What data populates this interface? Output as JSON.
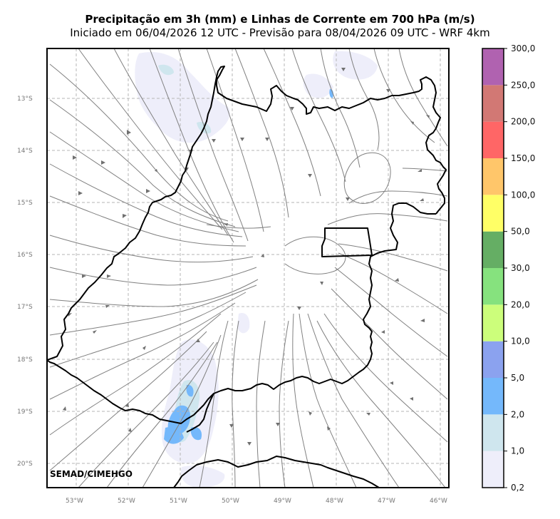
{
  "header": {
    "title": "Precipitação em 3h (mm) e Linhas de Corrente em 700 hPa (m/s)",
    "subtitle": "Iniciado em 06/04/2026 12 UTC - Previsão para 08/04/2026 09 UTC - WRF 4km"
  },
  "map": {
    "credit": "SEMAD/CIMEHGO",
    "lon_labels": [
      "53°W",
      "52°W",
      "51°W",
      "50°W",
      "49°W",
      "48°W",
      "47°W",
      "46°W"
    ],
    "lat_labels": [
      "13°S",
      "14°S",
      "15°S",
      "16°S",
      "17°S",
      "18°S",
      "19°S",
      "20°S"
    ],
    "grid": "dashed",
    "lon_range": [
      -53.55,
      -45.85
    ],
    "lat_range": [
      -12.0,
      -20.45
    ]
  },
  "colorbar": {
    "labels": [
      "0,2",
      "1,0",
      "2,0",
      "5,0",
      "10,0",
      "20,0",
      "30,0",
      "50,0",
      "100,0",
      "150,0",
      "200,0",
      "250,0",
      "300,0"
    ],
    "colors": [
      "#eeeefa",
      "#cfe6ee",
      "#74b8fb",
      "#8ba2ef",
      "#ccfe7b",
      "#86e27e",
      "#65ae64",
      "#ffff66",
      "#ffc66a",
      "#ff6666",
      "#d27874",
      "#b062b0"
    ]
  },
  "colors": {
    "streamline": "#808080",
    "boundary": "#000000",
    "grid": "#b5b5b5"
  }
}
